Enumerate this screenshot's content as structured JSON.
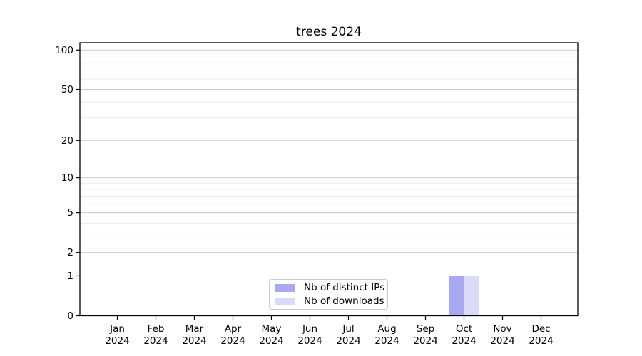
{
  "chart_data": {
    "type": "bar",
    "title": "trees 2024",
    "categories": [
      "Jan 2024",
      "Feb 2024",
      "Mar 2024",
      "Apr 2024",
      "May 2024",
      "Jun 2024",
      "Jul 2024",
      "Aug 2024",
      "Sep 2024",
      "Oct 2024",
      "Nov 2024",
      "Dec 2024"
    ],
    "x_tick_line1": [
      "Jan",
      "Feb",
      "Mar",
      "Apr",
      "May",
      "Jun",
      "Jul",
      "Aug",
      "Sep",
      "Oct",
      "Nov",
      "Dec"
    ],
    "x_tick_line2": [
      "2024",
      "2024",
      "2024",
      "2024",
      "2024",
      "2024",
      "2024",
      "2024",
      "2024",
      "2024",
      "2024",
      "2024"
    ],
    "series": [
      {
        "name": "Nb of distinct IPs",
        "color": "#a9a9f3",
        "values": [
          0,
          0,
          0,
          0,
          0,
          0,
          0,
          0,
          0,
          1,
          0,
          0
        ]
      },
      {
        "name": "Nb of downloads",
        "color": "#dbdbf9",
        "values": [
          0,
          0,
          0,
          0,
          0,
          0,
          0,
          0,
          0,
          1,
          0,
          0
        ]
      }
    ],
    "y_axis": {
      "scale": "log1p",
      "tick_values": [
        0,
        1,
        2,
        5,
        10,
        20,
        50,
        100
      ],
      "tick_labels": [
        "0",
        "1",
        "2",
        "5",
        "10",
        "20",
        "50",
        "100"
      ],
      "minor_gridline_values": [
        3,
        4,
        6,
        7,
        8,
        9,
        30,
        40,
        60,
        70,
        80,
        90
      ],
      "ylim": [
        0,
        113
      ]
    },
    "grid": "horizontal",
    "legend_position": "lower center inside",
    "axis_color": "#000000",
    "major_grid_color": "#c9c9c9",
    "minor_grid_color": "#ebebeb",
    "background": "#ffffff"
  }
}
